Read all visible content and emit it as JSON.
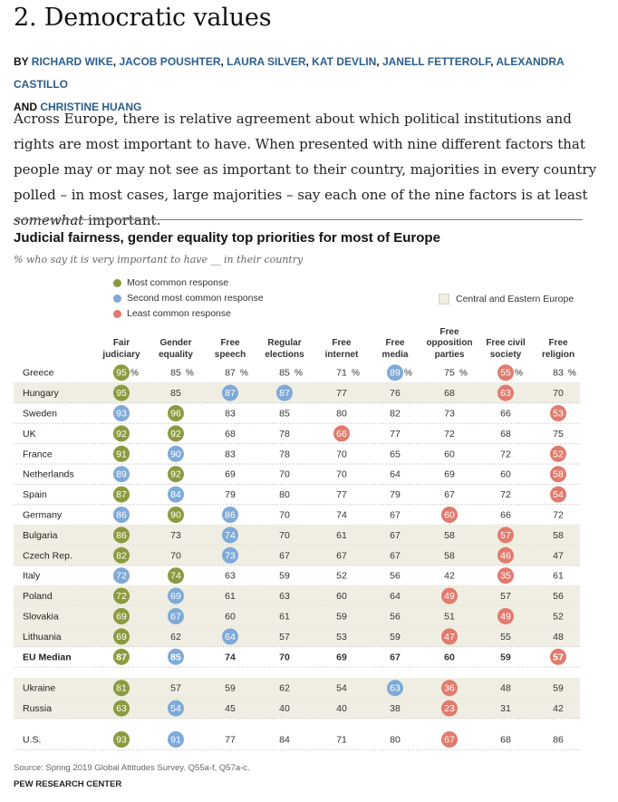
{
  "article": {
    "heading": "2. Democratic values",
    "byline_prefix": "BY",
    "authors": [
      "RICHARD WIKE",
      "JACOB POUSHTER",
      "LAURA SILVER",
      "KAT DEVLIN",
      "JANELL FETTEROLF",
      "ALEXANDRA CASTILLO",
      "CHRISTINE HUANG"
    ],
    "byline_and": "AND",
    "intro_before": "Across Europe, there is relative agreement about which political institutions and rights are most important to have. When presented with nine different factors that people may or may not see as important to their country, majorities in every country polled – in most cases, large majorities – say each one of the nine factors is at least ",
    "intro_emphasis": "somewhat",
    "intro_after": " important."
  },
  "chart_data": {
    "type": "table",
    "title": "Judicial fairness, gender equality top priorities for most of Europe",
    "subtitle": "% who say it is very important to have __ in their country",
    "legend": {
      "most": "Most common response",
      "second": "Second most common response",
      "least": "Least common response",
      "region": "Central and Eastern Europe"
    },
    "colors": {
      "most": "#8c9a3f",
      "second": "#7eaad8",
      "least": "#e07b6d",
      "region_band": "#f0eee2",
      "dotted_rule": "#bbbbbb"
    },
    "columns": [
      "Fair\njudiciary",
      "Gender\nequality",
      "Free\nspeech",
      "Regular\nelections",
      "Free\ninternet",
      "Free\nmedia",
      "Free\nopposition\nparties",
      "Free civil\nsociety",
      "Free\nreligion"
    ],
    "rows": [
      {
        "country": "Greece",
        "values": [
          95,
          85,
          87,
          85,
          71,
          89,
          75,
          55,
          83
        ],
        "highlight": [
          "most",
          null,
          null,
          null,
          null,
          "second",
          null,
          "least",
          null
        ],
        "percent": true,
        "band": false,
        "bold": false
      },
      {
        "country": "Hungary",
        "values": [
          95,
          85,
          87,
          87,
          77,
          76,
          68,
          63,
          70
        ],
        "highlight": [
          "most",
          null,
          "second",
          "second",
          null,
          null,
          null,
          "least",
          null
        ],
        "band": true
      },
      {
        "country": "Sweden",
        "values": [
          93,
          96,
          83,
          85,
          80,
          82,
          73,
          66,
          53
        ],
        "highlight": [
          "second",
          "most",
          null,
          null,
          null,
          null,
          null,
          null,
          "least"
        ],
        "band": false
      },
      {
        "country": "UK",
        "values": [
          92,
          92,
          68,
          78,
          66,
          77,
          72,
          68,
          75
        ],
        "highlight": [
          "most",
          "most",
          null,
          null,
          "least",
          null,
          null,
          null,
          null
        ],
        "band": false
      },
      {
        "country": "France",
        "values": [
          91,
          90,
          83,
          78,
          70,
          65,
          60,
          72,
          52
        ],
        "highlight": [
          "most",
          "second",
          null,
          null,
          null,
          null,
          null,
          null,
          "least"
        ],
        "band": false
      },
      {
        "country": "Netherlands",
        "values": [
          89,
          92,
          69,
          70,
          70,
          64,
          69,
          60,
          58
        ],
        "highlight": [
          "second",
          "most",
          null,
          null,
          null,
          null,
          null,
          null,
          "least"
        ],
        "band": false
      },
      {
        "country": "Spain",
        "values": [
          87,
          84,
          79,
          80,
          77,
          79,
          67,
          72,
          54
        ],
        "highlight": [
          "most",
          "second",
          null,
          null,
          null,
          null,
          null,
          null,
          "least"
        ],
        "band": false
      },
      {
        "country": "Germany",
        "values": [
          86,
          90,
          86,
          70,
          74,
          67,
          60,
          66,
          72
        ],
        "highlight": [
          "second",
          "most",
          "second",
          null,
          null,
          null,
          "least",
          null,
          null
        ],
        "band": false
      },
      {
        "country": "Bulgaria",
        "values": [
          86,
          73,
          74,
          70,
          61,
          67,
          58,
          57,
          58
        ],
        "highlight": [
          "most",
          null,
          "second",
          null,
          null,
          null,
          null,
          "least",
          null
        ],
        "band": true
      },
      {
        "country": "Czech Rep.",
        "values": [
          82,
          70,
          73,
          67,
          67,
          67,
          58,
          46,
          47
        ],
        "highlight": [
          "most",
          null,
          "second",
          null,
          null,
          null,
          null,
          "least",
          null
        ],
        "band": true
      },
      {
        "country": "Italy",
        "values": [
          72,
          74,
          63,
          59,
          52,
          56,
          42,
          35,
          61
        ],
        "highlight": [
          "second",
          "most",
          null,
          null,
          null,
          null,
          null,
          "least",
          null
        ],
        "band": false
      },
      {
        "country": "Poland",
        "values": [
          72,
          69,
          61,
          63,
          60,
          64,
          49,
          57,
          56
        ],
        "highlight": [
          "most",
          "second",
          null,
          null,
          null,
          null,
          "least",
          null,
          null
        ],
        "band": true
      },
      {
        "country": "Slovakia",
        "values": [
          69,
          67,
          60,
          61,
          59,
          56,
          51,
          49,
          52
        ],
        "highlight": [
          "most",
          "second",
          null,
          null,
          null,
          null,
          null,
          "least",
          null
        ],
        "band": true
      },
      {
        "country": "Lithuania",
        "values": [
          69,
          62,
          64,
          57,
          53,
          59,
          47,
          55,
          48
        ],
        "highlight": [
          "most",
          null,
          "second",
          null,
          null,
          null,
          "least",
          null,
          null
        ],
        "band": true
      },
      {
        "country": "EU Median",
        "values": [
          87,
          85,
          74,
          70,
          69,
          67,
          60,
          59,
          57
        ],
        "highlight": [
          "most",
          "second",
          null,
          null,
          null,
          null,
          null,
          null,
          "least"
        ],
        "band": false,
        "bold": true
      },
      {
        "country": "Ukraine",
        "values": [
          81,
          57,
          59,
          62,
          54,
          63,
          36,
          48,
          59
        ],
        "highlight": [
          "most",
          null,
          null,
          null,
          null,
          "second",
          "least",
          null,
          null
        ],
        "band": true,
        "gap_before": true
      },
      {
        "country": "Russia",
        "values": [
          63,
          54,
          45,
          40,
          40,
          38,
          23,
          31,
          42
        ],
        "highlight": [
          "most",
          "second",
          null,
          null,
          null,
          null,
          "least",
          null,
          null
        ],
        "band": true
      },
      {
        "country": "U.S.",
        "values": [
          93,
          91,
          77,
          84,
          71,
          80,
          67,
          68,
          86
        ],
        "highlight": [
          "most",
          "second",
          null,
          null,
          null,
          null,
          "least",
          null,
          null
        ],
        "band": false,
        "gap_before": true
      }
    ],
    "percent_sign": "%"
  },
  "footer": {
    "source": "Source: Spring 2019 Global Attitudes Survey. Q55a-f, Q57a-c.",
    "org": "PEW RESEARCH CENTER"
  }
}
